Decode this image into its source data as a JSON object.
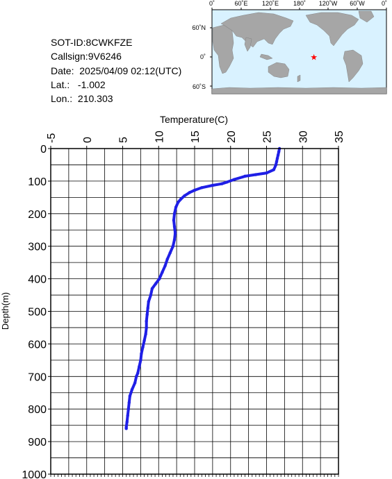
{
  "info": {
    "sot_id": "SOT-ID:8CWKFZE",
    "callsign": "Callsign:9V6246",
    "date": "Date:  2025/04/09 02:12(UTC)",
    "lat": "Lat.:   -1.002",
    "lon": "Lon.:  210.303"
  },
  "map": {
    "lon_labels": [
      "0˚",
      "60˚E",
      "120˚E",
      "180˚",
      "120˚W",
      "60˚W",
      "0˚"
    ],
    "lat_labels": [
      "60˚N",
      "0˚",
      "60˚S"
    ],
    "marker": {
      "lon": 210.303,
      "lat": -1.002,
      "color": "#ff0000"
    },
    "ocean_color": "#d9f2ff",
    "land_color": "#a6a6a6"
  },
  "chart_data": {
    "type": "line",
    "xlabel": "Temperature(C)",
    "ylabel": "Depth(m)",
    "xlim": [
      -5,
      35
    ],
    "ylim": [
      0,
      1000
    ],
    "y_inverted": true,
    "x_ticks": [
      "-5",
      "0",
      "5",
      "10",
      "15",
      "20",
      "25",
      "30",
      "35"
    ],
    "y_ticks": [
      "0",
      "100",
      "200",
      "300",
      "400",
      "500",
      "600",
      "700",
      "800",
      "900",
      "1000"
    ],
    "grid": true,
    "series_color": "#1f1fe6",
    "series": [
      {
        "x": [
          26.8,
          26.7,
          26.6,
          26.5,
          26.4,
          26.3,
          26.0,
          25.0,
          23.5,
          22.0,
          20.5,
          19.5,
          18.8,
          17.5,
          16.0,
          15.0,
          14.3,
          13.6,
          13.1,
          12.7,
          12.4,
          12.2,
          12.1,
          12.2,
          12.3,
          12.2,
          12.0,
          11.6,
          11.2,
          10.9,
          10.5,
          10.1,
          9.6,
          9.1,
          8.9,
          8.6,
          8.5,
          8.4,
          8.3,
          8.3,
          8.2,
          8.0,
          7.8,
          7.6,
          7.5,
          7.3,
          7.1,
          6.9,
          6.7,
          6.3,
          6.0,
          5.9,
          5.8,
          5.7,
          5.6,
          5.5,
          5.5
        ],
        "y": [
          0,
          10,
          20,
          30,
          40,
          50,
          65,
          75,
          80,
          85,
          95,
          103,
          108,
          113,
          120,
          128,
          135,
          145,
          155,
          165,
          180,
          200,
          220,
          240,
          260,
          280,
          300,
          320,
          340,
          360,
          380,
          400,
          415,
          430,
          450,
          470,
          490,
          510,
          530,
          550,
          570,
          590,
          610,
          630,
          650,
          670,
          690,
          700,
          720,
          740,
          760,
          780,
          800,
          820,
          840,
          855,
          860
        ]
      }
    ]
  }
}
